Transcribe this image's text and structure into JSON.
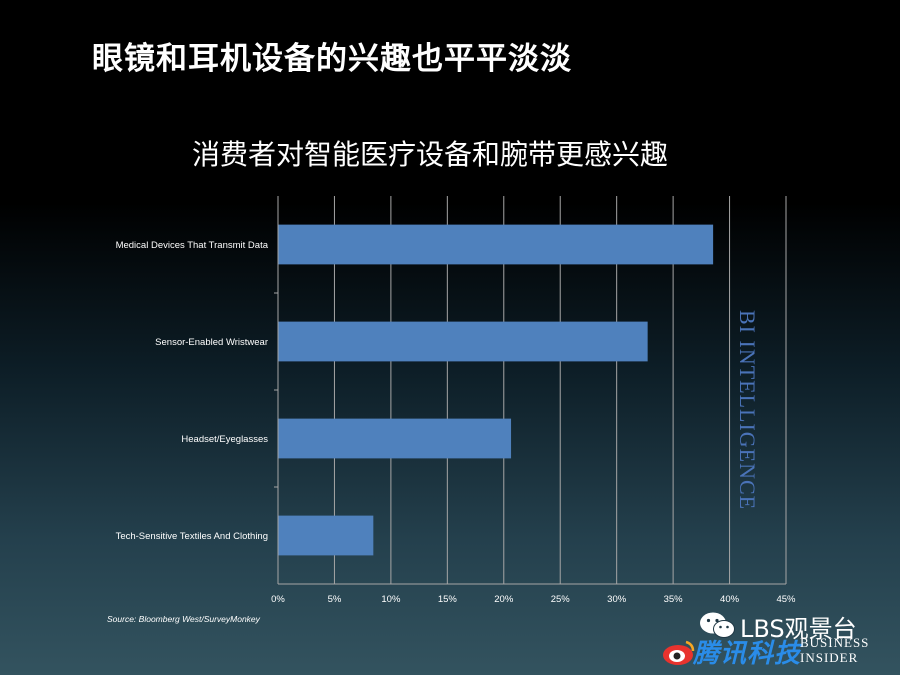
{
  "slide_title": "眼镜和耳机设备的兴趣也平平淡淡",
  "source": "Source: Bloomberg West/SurveyMonkey",
  "watermark": {
    "bi_intelligence": "BI INTELLIGENCE",
    "lbs_text": "LBS观景台",
    "tencent_text": "腾讯科技",
    "business_insider_line1": "BUSINESS",
    "business_insider_line2": "INSIDER",
    "wechat_icon": "wechat-icon",
    "tencent_icon": "weibo-eye-icon"
  },
  "chart_data": {
    "type": "bar",
    "orientation": "horizontal",
    "title": "消费者对智能医疗设备和腕带更感兴趣",
    "categories": [
      "Medical Devices That Transmit Data",
      "Sensor-Enabled Wristwear",
      "Headset/Eyeglasses",
      "Tech-Sensitive Textiles And Clothing"
    ],
    "values": [
      38.5,
      32.7,
      20.6,
      8.4
    ],
    "xlim": [
      0,
      45
    ],
    "xticks": [
      "0%",
      "5%",
      "10%",
      "15%",
      "20%",
      "25%",
      "30%",
      "35%",
      "40%",
      "45%"
    ],
    "grid": true,
    "bar_color": "#4f81bd"
  }
}
